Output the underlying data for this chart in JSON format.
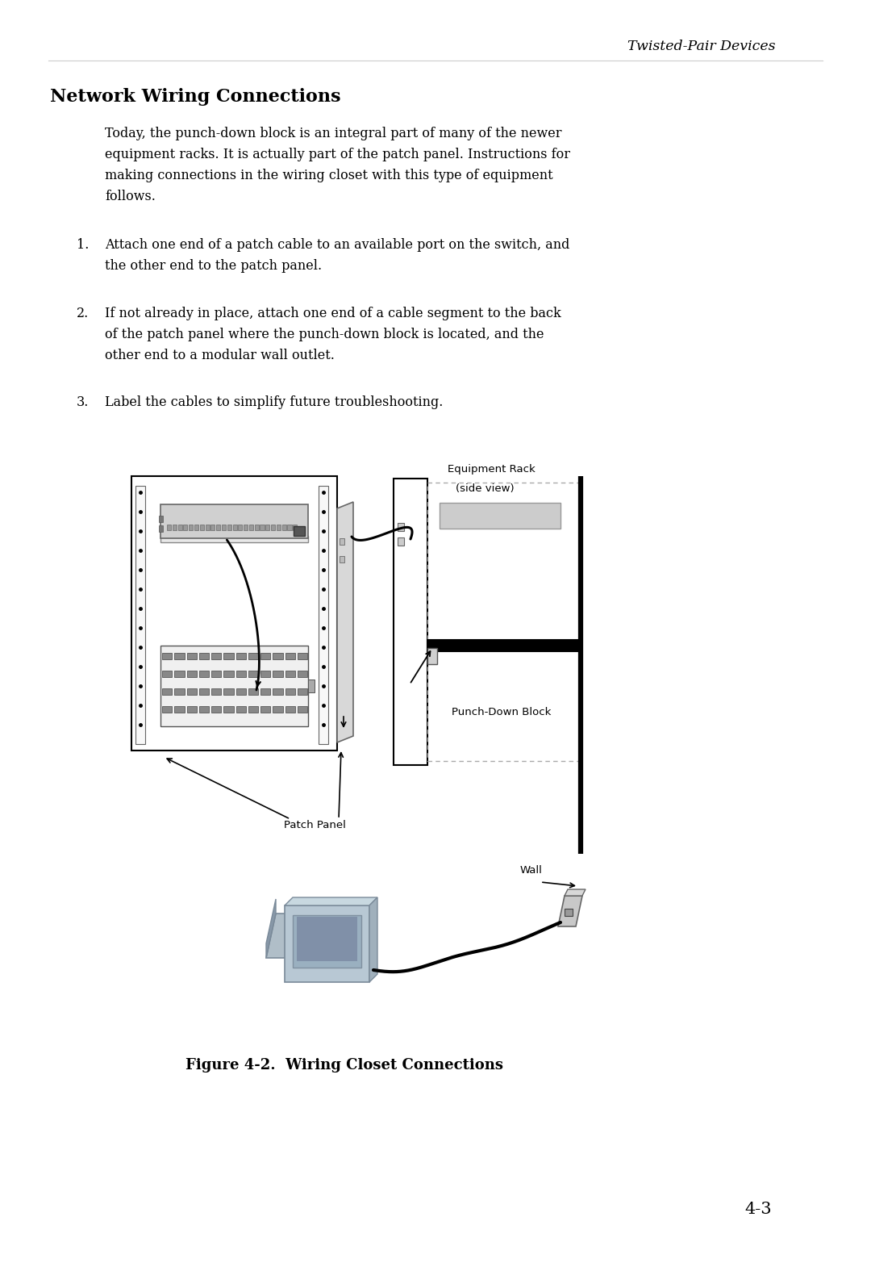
{
  "background_color": "#ffffff",
  "page_header": "Twisted-Pair Devices",
  "section_title": "Network Wiring Connections",
  "body_text_lines": [
    "Today, the punch-down block is an integral part of many of the newer",
    "equipment racks. It is actually part of the patch panel. Instructions for",
    "making connections in the wiring closet with this type of equipment",
    "follows."
  ],
  "list_items": [
    [
      "Attach one end of a patch cable to an available port on the switch, and",
      "the other end to the patch panel."
    ],
    [
      "If not already in place, attach one end of a cable segment to the back",
      "of the patch panel where the punch-down block is located, and the",
      "other end to a modular wall outlet."
    ],
    [
      "Label the cables to simplify future troubleshooting."
    ]
  ],
  "diagram_labels": {
    "equipment_rack": "Equipment Rack\n(side view)",
    "patch_panel": "Patch Panel",
    "punch_down_block": "Punch-Down Block",
    "wall": "Wall"
  },
  "figure_caption": "Figure 4-2.  Wiring Closet Connections",
  "page_number": "4-3",
  "colors": {
    "rack_border": "#000000",
    "rack_bg": "#ffffff",
    "flange_bg": "#f5f5f5",
    "switch_bg": "#d0d0d0",
    "switch_top": "#e8e8e8",
    "patch_port": "#888888",
    "side_panel": "#d8d8d8",
    "side_rack_bg": "#ffffff",
    "shelf_bg": "#cccccc",
    "shelf_border": "#999999",
    "pdb_bar": "#000000",
    "dotted_border": "#aaaaaa",
    "wall_line": "#000000",
    "computer_body": "#c8d0d8",
    "computer_screen": "#9ab0c0",
    "computer_screen_inner": "#8090a8",
    "outlet_bg": "#d0d0d0",
    "cable": "#000000",
    "text_black": "#000000"
  }
}
